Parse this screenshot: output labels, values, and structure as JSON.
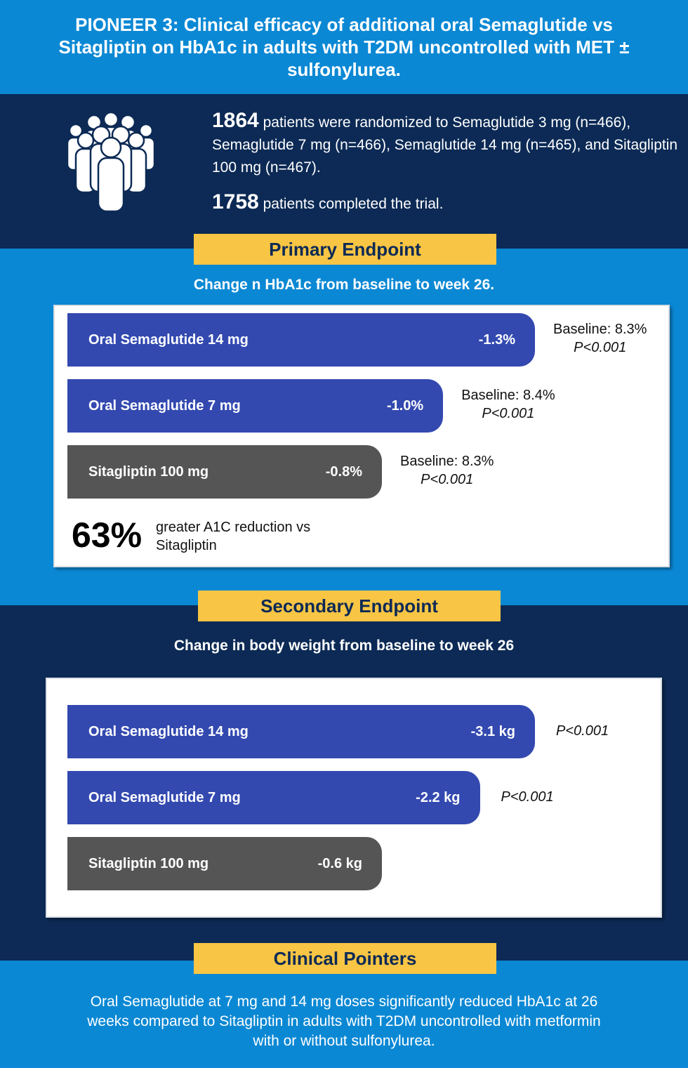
{
  "header": {
    "title": "PIONEER 3: Clinical efficacy of additional oral Semaglutide vs Sitagliptin on HbA1c in adults with T2DM uncontrolled with MET ± sulfonylurea."
  },
  "patients": {
    "randomized_count": "1864",
    "randomized_text": "patients were randomized to Semaglutide 3 mg (n=466), Semaglutide 7 mg (n=466), Semaglutide 14 mg (n=465), and Sitagliptin 100 mg (n=467).",
    "completed_count": "1758",
    "completed_text": "patients completed the trial.",
    "icon": "people-group-icon"
  },
  "primary": {
    "tag": "Primary Endpoint",
    "subtitle": "Change n HbA1c from baseline to week 26.",
    "highlight_value": "63%",
    "highlight_text": "greater A1C reduction vs Sitagliptin"
  },
  "secondary": {
    "tag": "Secondary Endpoint",
    "subtitle": "Change in body weight from baseline to week 26"
  },
  "pointers": {
    "tag": "Clinical Pointers",
    "text": "Oral Semaglutide at 7 mg and 14 mg doses significantly reduced HbA1c at 26 weeks compared to Sitagliptin in adults with T2DM uncontrolled with metformin with or without sulfonylurea."
  },
  "colors": {
    "semaglutide": "#3349b0",
    "sitagliptin": "#555555",
    "accent": "#f8c544",
    "navy": "#0c2a55",
    "blue": "#0b88d4"
  },
  "chart_data": [
    {
      "type": "bar",
      "orientation": "horizontal",
      "title": "Change n HbA1c from baseline to week 26.",
      "categories": [
        "Oral Semaglutide 14 mg",
        "Oral Semaglutide 7 mg",
        "Sitagliptin 100 mg"
      ],
      "values": [
        -1.3,
        -1.0,
        -0.8
      ],
      "value_labels": [
        "-1.3%",
        "-1.0%",
        "-0.8%"
      ],
      "annotations": [
        {
          "baseline": "Baseline: 8.3%",
          "p": "P<0.001"
        },
        {
          "baseline": "Baseline: 8.4%",
          "p": "P<0.001"
        },
        {
          "baseline": "Baseline: 8.3%",
          "p": "P<0.001"
        }
      ],
      "bar_colors": [
        "#3349b0",
        "#3349b0",
        "#555555"
      ]
    },
    {
      "type": "bar",
      "orientation": "horizontal",
      "title": "Change in body weight from baseline to week 26",
      "categories": [
        "Oral Semaglutide 14 mg",
        "Oral Semaglutide 7 mg",
        "Sitagliptin 100 mg"
      ],
      "values": [
        -3.1,
        -2.2,
        -0.6
      ],
      "value_labels": [
        "-3.1 kg",
        "-2.2 kg",
        "-0.6 kg"
      ],
      "annotations": [
        {
          "p": "P<0.001"
        },
        {
          "p": "P<0.001"
        },
        {
          "p": ""
        }
      ],
      "bar_colors": [
        "#3349b0",
        "#3349b0",
        "#555555"
      ]
    }
  ]
}
